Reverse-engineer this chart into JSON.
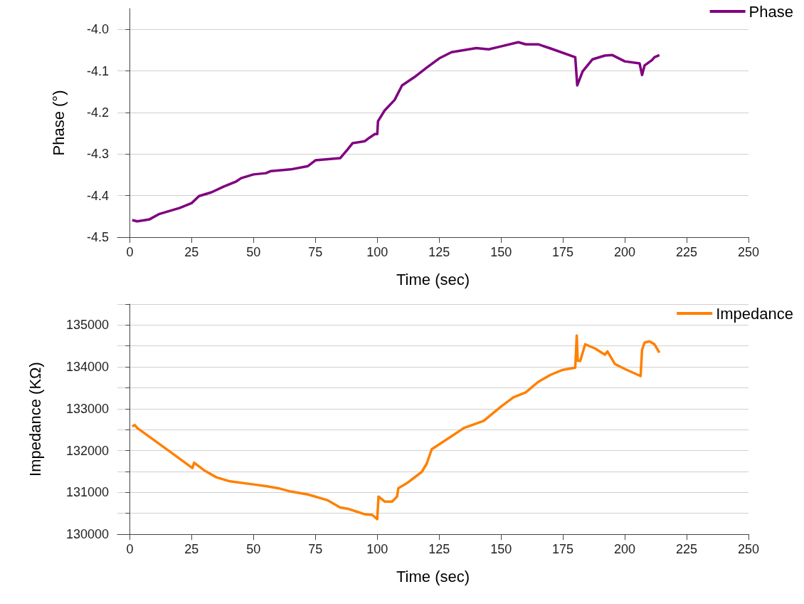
{
  "chart_data": [
    {
      "type": "line",
      "xlabel": "Time (sec)",
      "ylabel": "Phase (°)",
      "xlim": [
        -5,
        250
      ],
      "xticks": [
        0,
        25,
        50,
        75,
        100,
        125,
        150,
        175,
        200,
        225,
        250
      ],
      "ylim": [
        -4.5,
        -3.95
      ],
      "yticks": [
        {
          "value": -4.5,
          "label": "-4.5"
        },
        {
          "value": -4.4,
          "label": "-4.4"
        },
        {
          "value": -4.3,
          "label": "-4.3"
        },
        {
          "value": -4.2,
          "label": "-4.2"
        },
        {
          "value": -4.1,
          "label": "-4.1"
        },
        {
          "value": -4,
          "label": "-4.0"
        }
      ],
      "grid": "y",
      "legend": "top right",
      "series": [
        {
          "name": "Phase",
          "color": "#800080",
          "x": [
            1,
            3,
            8,
            12,
            20,
            25,
            28,
            33,
            38,
            43,
            45,
            50,
            55,
            57,
            65,
            72,
            75,
            85,
            88,
            90,
            95,
            97,
            99,
            100,
            100.3,
            103,
            107,
            110,
            115,
            120,
            125,
            130,
            140,
            145,
            150,
            157,
            160,
            165,
            170,
            180,
            180.8,
            183,
            187,
            192,
            195,
            200,
            206,
            207,
            208,
            211,
            212,
            214
          ],
          "values": [
            -4.459,
            -4.462,
            -4.457,
            -4.444,
            -4.43,
            -4.418,
            -4.401,
            -4.392,
            -4.378,
            -4.366,
            -4.358,
            -4.349,
            -4.346,
            -4.341,
            -4.337,
            -4.329,
            -4.315,
            -4.31,
            -4.289,
            -4.274,
            -4.269,
            -4.26,
            -4.252,
            -4.252,
            -4.221,
            -4.195,
            -4.17,
            -4.135,
            -4.115,
            -4.092,
            -4.07,
            -4.055,
            -4.045,
            -4.048,
            -4.041,
            -4.031,
            -4.036,
            -4.036,
            -4.046,
            -4.067,
            -4.135,
            -4.101,
            -4.072,
            -4.063,
            -4.062,
            -4.077,
            -4.082,
            -4.11,
            -4.087,
            -4.074,
            -4.067,
            -4.062
          ]
        }
      ]
    },
    {
      "type": "line",
      "xlabel": "Time (sec)",
      "ylabel": "Impedance (KΩ)",
      "xlim": [
        -5,
        250
      ],
      "xticks": [
        0,
        25,
        50,
        75,
        100,
        125,
        150,
        175,
        200,
        225,
        250
      ],
      "ylim": [
        130000,
        135500
      ],
      "yticks": [
        130000,
        {
          "value": 130500,
          "label": null
        },
        131000,
        {
          "value": 131500,
          "label": null
        },
        132000,
        {
          "value": 132500,
          "label": null
        },
        133000,
        {
          "value": 133500,
          "label": null
        },
        134000,
        {
          "value": 134500,
          "label": null
        },
        135000,
        {
          "value": 135500,
          "label": null
        }
      ],
      "grid": "y",
      "legend": "top right",
      "series": [
        {
          "name": "Impedance",
          "color": "#ff8000",
          "x": [
            1,
            2,
            3,
            10,
            20,
            25.3,
            26,
            30,
            35,
            40,
            50,
            55,
            60,
            65,
            72,
            80,
            85,
            88,
            95,
            98,
            100,
            100.5,
            103,
            106,
            108,
            108.5,
            112,
            118,
            120,
            122,
            130,
            135,
            143,
            150,
            155,
            160,
            165,
            170,
            175,
            180,
            180.6,
            181,
            182,
            184,
            188,
            192,
            193,
            196,
            200,
            206.4,
            207,
            208,
            210,
            212,
            214
          ],
          "values": [
            132576,
            132610,
            132540,
            132240,
            131810,
            131580,
            131710,
            131530,
            131360,
            131270,
            131190,
            131150,
            131100,
            131020,
            130950,
            130810,
            130640,
            130610,
            130475,
            130460,
            130360,
            130900,
            130780,
            130780,
            130900,
            131100,
            131220,
            131490,
            131690,
            132030,
            132340,
            132540,
            132710,
            133050,
            133270,
            133390,
            133640,
            133810,
            133930,
            133980,
            134750,
            134150,
            134140,
            134540,
            134440,
            134290,
            134370,
            134070,
            133950,
            133780,
            134410,
            134580,
            134610,
            134540,
            134340
          ]
        }
      ]
    }
  ]
}
